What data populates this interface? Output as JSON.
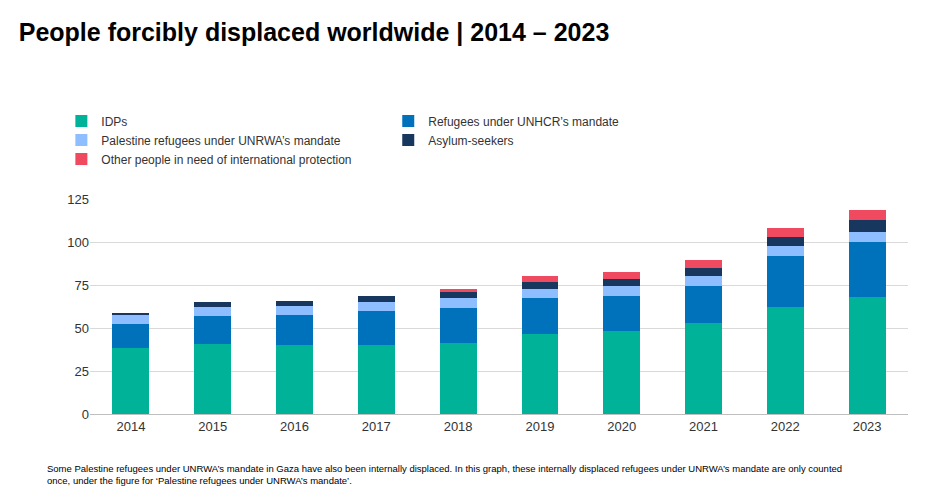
{
  "chart_data": {
    "type": "bar",
    "title": "People forcibly displaced worldwide | 2014 – 2023",
    "categories": [
      "2014",
      "2015",
      "2016",
      "2017",
      "2018",
      "2019",
      "2020",
      "2021",
      "2022",
      "2023"
    ],
    "series": [
      {
        "name": "IDPs",
        "color": "#00b398",
        "values": [
          38.2,
          40.8,
          40.3,
          40.0,
          41.3,
          46.5,
          48.0,
          53.2,
          62.5,
          68.3
        ]
      },
      {
        "name": "Refugees under UNHCR’s mandate",
        "color": "#0072bc",
        "values": [
          14.4,
          16.1,
          17.2,
          19.9,
          20.4,
          20.7,
          20.7,
          21.3,
          29.4,
          31.6
        ]
      },
      {
        "name": "Palestine refugees under UNRWA’s mandate",
        "color": "#8ebeff",
        "values": [
          5.1,
          5.2,
          5.3,
          5.4,
          5.5,
          5.6,
          5.7,
          5.8,
          5.9,
          6.0
        ]
      },
      {
        "name": "Asylum-seekers",
        "color": "#18375f",
        "values": [
          1.2,
          3.2,
          2.8,
          3.1,
          3.5,
          4.1,
          4.2,
          4.6,
          5.4,
          6.9
        ]
      },
      {
        "name": "Other people in need of international protection",
        "color": "#ef4a60",
        "values": [
          null,
          null,
          null,
          null,
          2.2,
          3.6,
          3.9,
          4.4,
          5.2,
          5.8
        ]
      }
    ],
    "stacked": true,
    "ylim": [
      0,
      125
    ],
    "yticks": [
      0,
      25,
      50,
      75,
      100,
      125
    ],
    "grid": true,
    "legend": "top left",
    "annotations": [
      "Some Palestine refugees under UNRWA’s mandate in Gaza have also been internally displaced. In this graph, these internally displaced refugees under UNRWA’s mandate are only counted",
      "once, under the figure for ‘Palestine refugees under UNRWA’s mandate’."
    ]
  }
}
